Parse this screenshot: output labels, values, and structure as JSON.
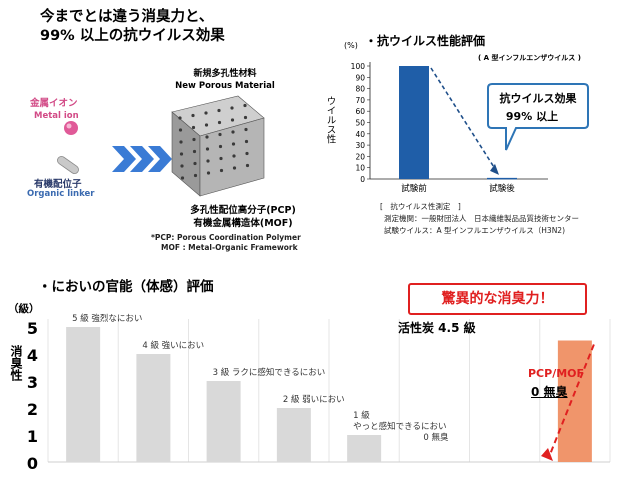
{
  "headline": {
    "line1": "今までとは違う消臭力と、",
    "line2": "99% 以上の抗ウイルス効果"
  },
  "materials": {
    "new_material_jp": "新規多孔性材料",
    "new_material_en": "New Porous Material",
    "metal_ion_jp": "金属イオン",
    "metal_ion_en": "Metal ion",
    "organic_linker_jp": "有機配位子",
    "organic_linker_en": "Organic linker",
    "pcp_jp": "多孔性配位高分子(PCP)",
    "mof_jp": "有機金属構造体(MOF)",
    "pcp_note": "*PCP: Porous Coordination Polymer",
    "mof_note": "MOF : Metal-Organic Framework"
  },
  "virus_section": {
    "title": "・抗ウイルス性能評価",
    "subtitle": "( A 型インフルエンザウイルス )",
    "callout_line1": "抗ウイルス効果",
    "callout_line2": "99% 以上",
    "notes": [
      "[　抗ウイルス性測定　]",
      "測定機関：一般財団法人　日本繊維製品品質技術センター",
      "試験ウイルス：A 型インフルエンザウイルス（H3N2)"
    ]
  },
  "odor_section": {
    "title": "・においの官能（体感）評価",
    "banner": "驚異的な消臭力！",
    "charcoal_label": "活性炭 4.5 級",
    "pcp_mof_label": "PCP/MOF",
    "zero_odor_label": "0 無臭"
  },
  "chart_data": [
    {
      "type": "bar",
      "categories": [
        "試験前",
        "試験後"
      ],
      "values": [
        100,
        1
      ],
      "ylim": [
        0,
        100
      ],
      "yticks": [
        0,
        10,
        20,
        30,
        40,
        50,
        60,
        70,
        80,
        90,
        100
      ],
      "yunit": "(%)",
      "ylabel": "ウイルス性",
      "colors": {
        "bar": "#1f5ea8",
        "arrow": "#1f4f8a",
        "callout_border": "#2e75b6"
      }
    },
    {
      "type": "bar",
      "yticks": [
        0,
        1,
        2,
        3,
        4,
        5
      ],
      "ylim": [
        0,
        5
      ],
      "yunit": "（級）",
      "ylabel": "消臭性",
      "bars": [
        {
          "value": 5,
          "label": "5 級 強烈なにおい",
          "color": "#d9d9d9"
        },
        {
          "value": 4,
          "label": "4 級 強いにおい",
          "color": "#d9d9d9"
        },
        {
          "value": 3,
          "label": "3 級 ラクに感知できるにおい",
          "color": "#d9d9d9"
        },
        {
          "value": 2,
          "label": "2 級 弱いにおい",
          "color": "#d9d9d9"
        },
        {
          "value": 1,
          "label": "1 級\nやっと感知できるにおい",
          "color": "#d9d9d9"
        },
        {
          "value": 0,
          "label": "0 無臭",
          "color": "#d9d9d9"
        },
        {
          "value": 0,
          "label": "",
          "color": "#d9d9d9"
        },
        {
          "value": 4.5,
          "label": "",
          "color": "#f0956b"
        }
      ],
      "colors": {
        "arrow": "#e02020",
        "grid": "#e5e5e5",
        "highlight": "#f0956b"
      }
    }
  ]
}
